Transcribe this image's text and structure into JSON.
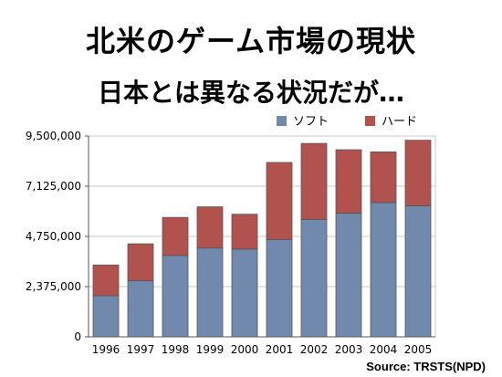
{
  "page": {
    "title": "北米のゲーム市場の現状",
    "subtitle": "日本とは異なる状況だが…",
    "source": "Source: TRSTS(NPD)"
  },
  "colors": {
    "soft": "#7189ad",
    "hard": "#b2524f",
    "grid": "#c8c8c8",
    "axis": "#555555"
  },
  "chart_data": {
    "type": "bar",
    "stacked": true,
    "categories": [
      "1996",
      "1997",
      "1998",
      "1999",
      "2000",
      "2001",
      "2002",
      "2003",
      "2004",
      "2005"
    ],
    "series": [
      {
        "name": "ソフト",
        "values": [
          1950000,
          2650000,
          3850000,
          4200000,
          4150000,
          4600000,
          5550000,
          5850000,
          6350000,
          6200000
        ]
      },
      {
        "name": "ハード",
        "values": [
          1450000,
          1750000,
          1800000,
          1950000,
          1650000,
          3650000,
          3600000,
          3000000,
          2400000,
          3100000
        ]
      }
    ],
    "yticks": [
      "0",
      "2,375,000",
      "4,750,000",
      "7,125,000",
      "9,500,000"
    ],
    "ytick_values": [
      0,
      2375000,
      4750000,
      7125000,
      9500000
    ],
    "ylim": [
      0,
      9500000
    ],
    "legend_position": "top-right",
    "grid": true
  }
}
